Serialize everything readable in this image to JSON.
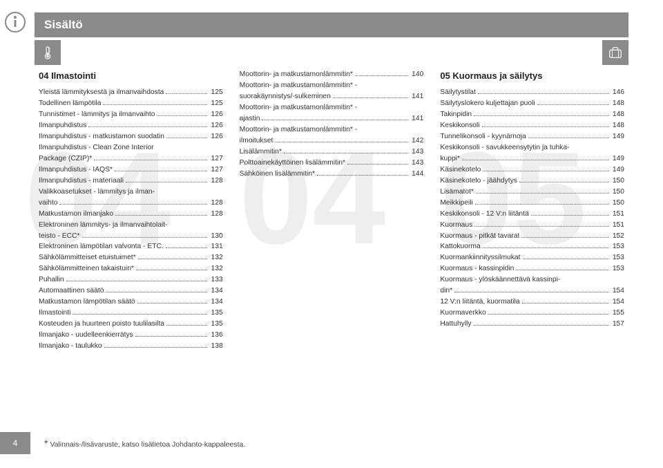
{
  "header": {
    "title": "Sisältö"
  },
  "watermarks": [
    "04",
    "04",
    "05"
  ],
  "page_number": "4",
  "footnote": {
    "star": "*",
    "text": " Valinnais-/lisävaruste, katso lisätietoa Johdanto-kappaleesta."
  },
  "columns": [
    {
      "title": "04 Ilmastointi",
      "rows": [
        {
          "label": "Yleistä lämmityksestä ja ilmanvaihdosta",
          "page": "125"
        },
        {
          "label": "Todellinen lämpötila",
          "page": "125"
        },
        {
          "label": "Tunnistimet - lämmitys ja ilmanvaihto",
          "page": "126"
        },
        {
          "label": "Ilmanpuhdistus",
          "page": "126"
        },
        {
          "label": "Ilmanpuhdistus - matkustamon suodatin",
          "page": "126"
        },
        {
          "label_pre": "Ilmanpuhdistus - Clean Zone Interior",
          "label_last": "Package (CZIP)*",
          "page": "127"
        },
        {
          "label": "Ilmanpuhdistus - IAQS*",
          "page": "127"
        },
        {
          "label": "Ilmanpuhdistus - materiaali",
          "page": "128"
        },
        {
          "label_pre": "Valikkoasetukset - lämmitys ja ilman-",
          "label_last": "vaihto",
          "page": "128"
        },
        {
          "label": "Matkustamon ilmanjako",
          "page": "128"
        },
        {
          "label_pre": "Elektroninen lämmitys- ja ilmanvaihtolait-",
          "label_last": "teisto - ECC*",
          "page": "130"
        },
        {
          "label": "Elektroninen lämpötilan valvonta - ETC.",
          "page": "131"
        },
        {
          "label": "Sähkölämmitteiset etuistuimet*",
          "page": "132"
        },
        {
          "label": "Sähkölämmitteinen takaistuin*",
          "page": "132"
        },
        {
          "label": "Puhallin",
          "page": "133"
        },
        {
          "label": "Automaattinen säätö",
          "page": "134"
        },
        {
          "label": "Matkustamon lämpötilan säätö",
          "page": "134"
        },
        {
          "label": "Ilmastointi",
          "page": "135"
        },
        {
          "label": "Kosteuden ja huurteen poisto tuulilasilta",
          "page": "135"
        },
        {
          "label": "Ilmanjako - uudelleenkierrätys",
          "page": "136"
        },
        {
          "label": "Ilmanjako - taulukko",
          "page": "138"
        }
      ]
    },
    {
      "title": "",
      "rows": [
        {
          "label": "Moottorin- ja matkustamonlämmitin*",
          "page": "140"
        },
        {
          "label_pre": "Moottorin- ja matkustamonlämmitin* -",
          "label_last": "suorakäynnistys/-sulkeminen",
          "page": "141"
        },
        {
          "label_pre": "Moottorin- ja matkustamonlämmitin* -",
          "label_last": "ajastin",
          "page": "141"
        },
        {
          "label_pre": "Moottorin- ja matkustamonlämmitin* -",
          "label_last": "ilmoitukset",
          "page": "142"
        },
        {
          "label": "Lisälämmitin*",
          "page": "143"
        },
        {
          "label": "Polttoainekäyttöinen lisälämmitin*",
          "page": "143"
        },
        {
          "label": "Sähköinen lisälämmitin*",
          "page": "144"
        }
      ]
    },
    {
      "title": "05 Kuormaus ja säilytys",
      "rows": [
        {
          "label": "Säilytystilat",
          "page": "146"
        },
        {
          "label": "Säilytyslokero kuljettajan puoli",
          "page": "148"
        },
        {
          "label": "Takinpidin",
          "page": "148"
        },
        {
          "label": "Keskikonsoli",
          "page": "148"
        },
        {
          "label": "Tunnelikonsoli - kyynärnoja",
          "page": "149"
        },
        {
          "label_pre": "Keskikonsoli - savukkeensytytin ja tuhka-",
          "label_last": "kuppi*",
          "page": "149"
        },
        {
          "label": "Käsinekotelo",
          "page": "149"
        },
        {
          "label": "Käsinekotelo - jäähdytys",
          "page": "150"
        },
        {
          "label": "Lisämatot*",
          "page": "150"
        },
        {
          "label": "Meikkipeili",
          "page": "150"
        },
        {
          "label": "Keskikonsoli - 12 V:n liitäntä",
          "page": "151"
        },
        {
          "label": "Kuormaus",
          "page": "151"
        },
        {
          "label": "Kuormaus - pitkät tavarat",
          "page": "152"
        },
        {
          "label": "Kattokuorma",
          "page": "153"
        },
        {
          "label": "Kuormankiinnityssilmukat",
          "page": "153"
        },
        {
          "label": "Kuormaus - kassinpidin",
          "page": "153"
        },
        {
          "label_pre": "Kuormaus - ylöskäännettävä kassinpi-",
          "label_last": "din*",
          "page": "154"
        },
        {
          "label": "12 V:n liitäntä, kuormatila",
          "page": "154"
        },
        {
          "label": "Kuormaverkko",
          "page": "155"
        },
        {
          "label": "Hattuhylly",
          "page": "157"
        }
      ]
    }
  ]
}
